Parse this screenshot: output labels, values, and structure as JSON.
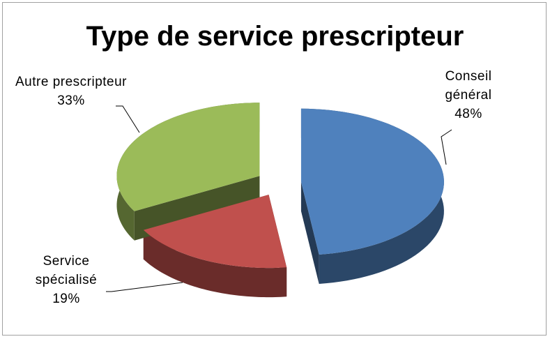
{
  "chart_data": {
    "type": "pie",
    "title": "Type de service prescripteur",
    "categories": [
      "Conseil général",
      "Service spécialisé",
      "Autre prescripteur"
    ],
    "values": [
      48,
      19,
      33
    ],
    "value_labels": [
      "48%",
      "19%",
      "33%"
    ],
    "colors": [
      "#4f81bd",
      "#c0504d",
      "#9bbb59"
    ]
  }
}
